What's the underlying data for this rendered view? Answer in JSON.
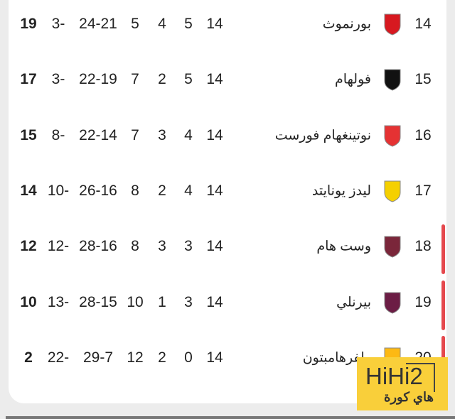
{
  "rows": [
    {
      "pos": "14",
      "name": "بورنموث",
      "played": "14",
      "c1": "5",
      "c2": "4",
      "c3": "5",
      "goals": "24-21",
      "gd": "3-",
      "pts": "19",
      "logo": "bournemouth-crest-icon",
      "color": "#d71920",
      "zone": false
    },
    {
      "pos": "15",
      "name": "فولهام",
      "played": "14",
      "c1": "5",
      "c2": "2",
      "c3": "7",
      "goals": "22-19",
      "gd": "3-",
      "pts": "17",
      "logo": "fulham-crest-icon",
      "color": "#111111",
      "zone": false
    },
    {
      "pos": "16",
      "name": "نوتينغهام فورست",
      "played": "14",
      "c1": "4",
      "c2": "3",
      "c3": "7",
      "goals": "22-14",
      "gd": "8-",
      "pts": "15",
      "logo": "nottingham-forest-crest-icon",
      "color": "#e53233",
      "zone": false
    },
    {
      "pos": "17",
      "name": "ليدز يونايتد",
      "played": "14",
      "c1": "4",
      "c2": "2",
      "c3": "8",
      "goals": "26-16",
      "gd": "10-",
      "pts": "14",
      "logo": "leeds-united-crest-icon",
      "color": "#f5d000",
      "zone": false
    },
    {
      "pos": "18",
      "name": "وست هام",
      "played": "14",
      "c1": "3",
      "c2": "3",
      "c3": "8",
      "goals": "28-16",
      "gd": "12-",
      "pts": "12",
      "logo": "west-ham-crest-icon",
      "color": "#7a263a",
      "zone": true
    },
    {
      "pos": "19",
      "name": "بيرنلي",
      "played": "14",
      "c1": "3",
      "c2": "1",
      "c3": "10",
      "goals": "28-15",
      "gd": "13-",
      "pts": "10",
      "logo": "burnley-crest-icon",
      "color": "#6c1d45",
      "zone": true
    },
    {
      "pos": "20",
      "name": "ولفرهامبتون",
      "played": "14",
      "c1": "0",
      "c2": "2",
      "c3": "12",
      "goals": "29-7",
      "gd": "22-",
      "pts": "2",
      "logo": "wolves-crest-icon",
      "color": "#fdb913",
      "zone": true
    }
  ],
  "relegation_color": "#e5484d",
  "watermark": {
    "latin": "HiHi2",
    "arabic": "هاي كورة"
  }
}
